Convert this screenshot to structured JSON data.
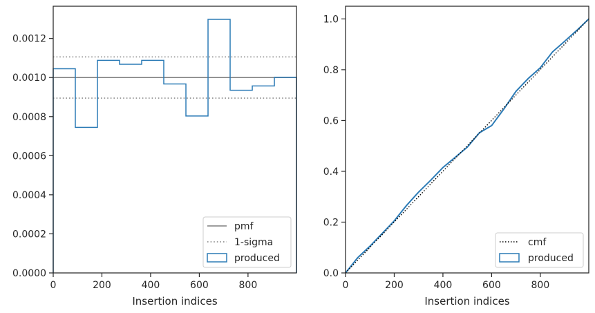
{
  "chart_data": [
    {
      "type": "histogram",
      "xlabel": "Insertion indices",
      "ylabel": "",
      "xlim": [
        0,
        999
      ],
      "ylim": [
        0,
        0.001365
      ],
      "xticks": [
        0,
        200,
        400,
        600,
        800
      ],
      "yticks": [
        0.0,
        0.0002,
        0.0004,
        0.0006,
        0.0008,
        0.001,
        0.0012
      ],
      "ytick_labels": [
        "0.0000",
        "0.0002",
        "0.0004",
        "0.0006",
        "0.0008",
        "0.0010",
        "0.0012"
      ],
      "legend_position": "lower-right",
      "series": [
        {
          "name": "produced",
          "kind": "step-histogram",
          "bin_edges": [
            0,
            90.8,
            181.6,
            272.5,
            363.3,
            454.1,
            545,
            635.8,
            726.6,
            817.5,
            908.3,
            999
          ],
          "values": [
            0.001045,
            0.000745,
            0.001088,
            0.001068,
            0.001088,
            0.000967,
            0.000803,
            0.001298,
            0.000935,
            0.000957,
            0.001001
          ]
        },
        {
          "name": "pmf",
          "kind": "hline",
          "y": 0.001
        },
        {
          "name": "1-sigma",
          "kind": "hline-pair",
          "y": [
            0.0008945,
            0.0011055
          ]
        }
      ],
      "legend": [
        "pmf",
        "1-sigma",
        "produced"
      ]
    },
    {
      "type": "line",
      "xlabel": "Insertion indices",
      "ylabel": "",
      "xlim": [
        0,
        999
      ],
      "ylim": [
        0,
        1.05
      ],
      "xticks": [
        0,
        200,
        400,
        600,
        800
      ],
      "yticks": [
        0.0,
        0.2,
        0.4,
        0.6,
        0.8,
        1.0
      ],
      "ytick_labels": [
        "0.0",
        "0.2",
        "0.4",
        "0.6",
        "0.8",
        "1.0"
      ],
      "legend_position": "lower-right",
      "series": [
        {
          "name": "cmf",
          "x": [
            0,
            999
          ],
          "y": [
            0,
            1.0
          ]
        },
        {
          "name": "produced",
          "x": [
            0,
            50,
            100,
            150,
            200,
            250,
            300,
            350,
            400,
            450,
            500,
            550,
            600,
            650,
            700,
            750,
            800,
            850,
            900,
            950,
            999
          ],
          "y": [
            0,
            0.06,
            0.105,
            0.155,
            0.205,
            0.265,
            0.318,
            0.365,
            0.415,
            0.455,
            0.495,
            0.552,
            0.58,
            0.645,
            0.715,
            0.765,
            0.808,
            0.87,
            0.912,
            0.955,
            1.0
          ]
        }
      ],
      "legend": [
        "cmf",
        "produced"
      ]
    }
  ],
  "colors": {
    "produced": "#2c7bb6",
    "pmf": "#7f7f7f",
    "sigma": "#7f7f7f",
    "cmf": "#000000",
    "axes": "#262626"
  }
}
